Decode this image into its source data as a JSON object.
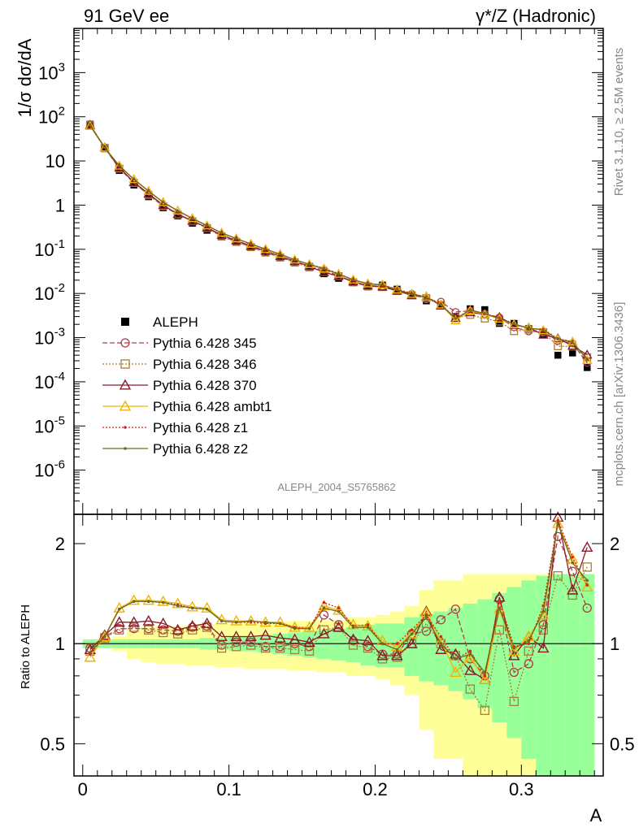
{
  "header": {
    "left_title": "91 GeV ee",
    "right_title": "γ*/Z (Hadronic)"
  },
  "side_labels": {
    "rivet": "Rivet 3.1.10, ≥ 2.5M events",
    "mcplots": "mcplots.cern.ch [arXiv:1306.3436]"
  },
  "analysis_id": "ALEPH_2004_S5765862",
  "chart_data": [
    {
      "type": "scatter",
      "panel": "main",
      "ylabel": "1/σ  dσ/dA",
      "xlabel": "A",
      "yscale": "log",
      "xlim": [
        -0.006,
        0.356
      ],
      "ylim": [
        1e-07,
        10000
      ],
      "y_tick_labels": [
        "10^-6",
        "10^-5",
        "10^-4",
        "10^-3",
        "10^-2",
        "10^-1",
        "1",
        "10",
        "10^2",
        "10^3"
      ],
      "legend_placement": "lower-left",
      "x": [
        0.005,
        0.015,
        0.025,
        0.035,
        0.045,
        0.055,
        0.065,
        0.075,
        0.085,
        0.095,
        0.105,
        0.115,
        0.125,
        0.135,
        0.145,
        0.155,
        0.165,
        0.175,
        0.185,
        0.195,
        0.205,
        0.215,
        0.225,
        0.235,
        0.245,
        0.255,
        0.265,
        0.275,
        0.285,
        0.295,
        0.305,
        0.315,
        0.325,
        0.335,
        0.345
      ],
      "series": [
        {
          "name": "ALEPH",
          "color": "#000000",
          "marker": "filled-square",
          "line": "none",
          "values": [
            68,
            19,
            6.1,
            2.85,
            1.55,
            0.87,
            0.57,
            0.39,
            0.27,
            0.2,
            0.15,
            0.113,
            0.087,
            0.067,
            0.052,
            0.041,
            0.028,
            0.022,
            0.018,
            0.0148,
            0.0155,
            0.0125,
            0.0091,
            0.0068,
            0.0055,
            0.003,
            0.0045,
            0.0043,
            0.0021,
            0.0021,
            0.0016,
            0.0012,
            0.0004,
            0.00045,
            0.00021
          ]
        },
        {
          "name": "Pythia 6.428 345",
          "color": "#b03a48",
          "marker": "open-circle",
          "line": "dashed",
          "ratio": [
            0.97,
            1.05,
            1.11,
            1.11,
            1.11,
            1.1,
            1.09,
            1.12,
            1.13,
            0.99,
            1.01,
            1.01,
            0.98,
            0.98,
            1.0,
            0.98,
            1.22,
            1.14,
            1.02,
            0.98,
            0.93,
            0.93,
            1.07,
            1.09,
            1.18,
            1.27,
            0.9,
            0.8,
            1.36,
            0.82,
            0.87,
            1.14,
            2.1,
            1.65,
            1.28
          ]
        },
        {
          "name": "Pythia 6.428 346",
          "color": "#a87d3a",
          "marker": "open-square",
          "line": "dotted",
          "ratio": [
            0.95,
            1.04,
            1.1,
            1.12,
            1.1,
            1.08,
            1.07,
            1.1,
            1.12,
            0.97,
            0.98,
            0.99,
            0.97,
            0.97,
            0.96,
            0.95,
            1.1,
            1.12,
            0.99,
            0.97,
            0.9,
            0.91,
            1.0,
            1.15,
            1.0,
            0.92,
            0.73,
            0.63,
            1.1,
            0.67,
            0.95,
            1.1,
            1.6,
            1.4,
            1.7
          ]
        },
        {
          "name": "Pythia 6.428 370",
          "color": "#8b1a2b",
          "marker": "open-triangle",
          "line": "solid",
          "ratio": [
            0.96,
            1.06,
            1.16,
            1.16,
            1.17,
            1.15,
            1.1,
            1.13,
            1.15,
            1.05,
            1.05,
            1.05,
            1.06,
            1.04,
            1.03,
            1.01,
            1.07,
            1.12,
            1.03,
            1.02,
            0.92,
            0.92,
            1.0,
            1.25,
            0.96,
            0.93,
            0.83,
            0.78,
            1.38,
            0.92,
            1.05,
            0.97,
            2.4,
            1.45,
            1.95
          ]
        },
        {
          "name": "Pythia 6.428 ambt1",
          "color": "#f0b400",
          "marker": "open-triangle",
          "line": "solid",
          "ratio": [
            0.91,
            1.05,
            1.28,
            1.35,
            1.35,
            1.34,
            1.32,
            1.29,
            1.28,
            1.18,
            1.17,
            1.17,
            1.16,
            1.16,
            1.12,
            1.12,
            1.3,
            1.26,
            1.14,
            1.13,
            1.02,
            0.98,
            1.07,
            1.24,
            1.02,
            0.82,
            0.91,
            0.78,
            1.27,
            0.95,
            1.05,
            1.22,
            2.3,
            1.8,
            1.48
          ]
        },
        {
          "name": "Pythia 6.428 z1",
          "color": "#dd2222",
          "marker": "dot",
          "line": "dotted",
          "ratio": [
            0.93,
            1.05,
            1.27,
            1.34,
            1.34,
            1.33,
            1.31,
            1.28,
            1.27,
            1.17,
            1.16,
            1.16,
            1.15,
            1.15,
            1.12,
            1.11,
            1.33,
            1.28,
            1.13,
            1.14,
            1.0,
            1.0,
            1.1,
            1.22,
            1.05,
            0.9,
            0.95,
            0.8,
            1.35,
            0.98,
            1.0,
            1.3,
            2.35,
            1.82,
            1.5
          ]
        },
        {
          "name": "Pythia 6.428 z2",
          "color": "#6b6b1e",
          "marker": "dot",
          "line": "solid",
          "ratio": [
            0.94,
            1.05,
            1.27,
            1.34,
            1.34,
            1.33,
            1.3,
            1.28,
            1.27,
            1.17,
            1.16,
            1.17,
            1.16,
            1.15,
            1.11,
            1.11,
            1.28,
            1.25,
            1.12,
            1.12,
            1.0,
            0.96,
            1.07,
            1.2,
            1.0,
            0.9,
            0.93,
            0.82,
            1.28,
            0.97,
            1.02,
            1.25,
            2.3,
            1.75,
            1.55
          ]
        }
      ]
    },
    {
      "type": "scatter",
      "panel": "ratio",
      "ylabel": "Ratio to ALEPH",
      "xlabel": "A",
      "yscale": "log",
      "ylim": [
        0.4,
        2.45
      ],
      "y_ticks": [
        0.5,
        1,
        2
      ],
      "x_ticks": [
        0,
        0.1,
        0.2,
        0.3
      ],
      "reference_line": 1,
      "band_green_halfwidth": [
        0.03,
        0.03,
        0.03,
        0.03,
        0.03,
        0.03,
        0.03,
        0.03,
        0.04,
        0.04,
        0.05,
        0.05,
        0.06,
        0.07,
        0.08,
        0.09,
        0.1,
        0.11,
        0.12,
        0.14,
        0.15,
        0.15,
        0.2,
        0.23,
        0.25,
        0.28,
        0.32,
        0.36,
        0.42,
        0.48,
        0.55,
        0.6,
        0.62,
        0.62,
        0.62
      ],
      "band_yellow_halfwidth": [
        0.03,
        0.03,
        0.05,
        0.1,
        0.12,
        0.13,
        0.13,
        0.14,
        0.14,
        0.15,
        0.15,
        0.16,
        0.16,
        0.16,
        0.17,
        0.17,
        0.18,
        0.18,
        0.2,
        0.2,
        0.22,
        0.25,
        0.3,
        0.45,
        0.55,
        0.55,
        0.62,
        0.62,
        0.62,
        0.62,
        0.62,
        0.62,
        0.62,
        0.62,
        0.62
      ]
    }
  ]
}
